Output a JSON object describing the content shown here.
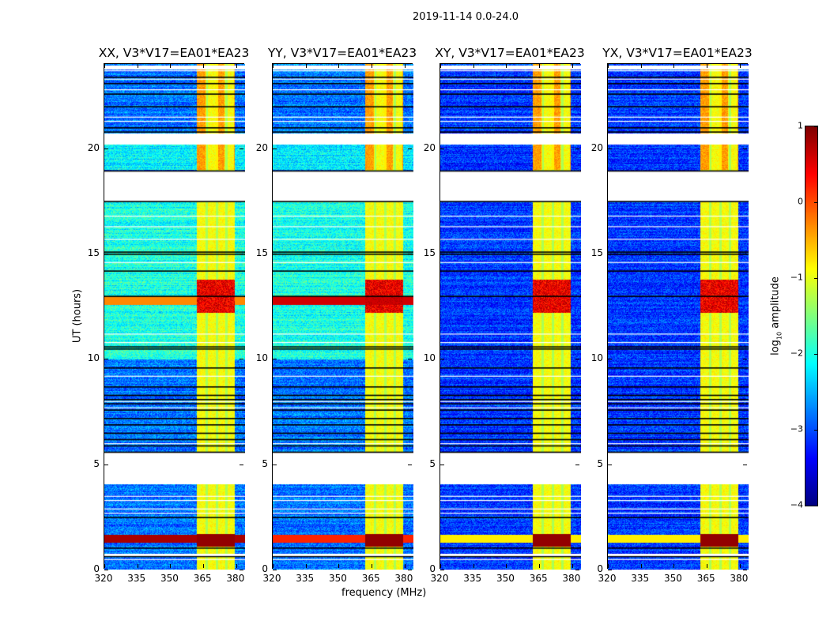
{
  "suptitle": "2019-11-14 0.0-24.0",
  "chart_data": {
    "type": "heatmap",
    "panels": [
      {
        "title": "XX, V3*V17=EA01*EA23",
        "pol": "XX"
      },
      {
        "title": "YY, V3*V17=EA01*EA23",
        "pol": "YY"
      },
      {
        "title": "XY, V3*V17=EA01*EA23",
        "pol": "XY"
      },
      {
        "title": "YX, V3*V17=EA01*EA23",
        "pol": "YX"
      }
    ],
    "xlabel": "frequency (MHz)",
    "ylabel": "UT (hours)",
    "xlim": [
      320,
      384
    ],
    "ylim": [
      0,
      24
    ],
    "xticks": [
      "320",
      "335",
      "350",
      "365",
      "380"
    ],
    "xtick_values": [
      320,
      335,
      350,
      365,
      380
    ],
    "yticks": [
      "0",
      "5",
      "10",
      "15",
      "20"
    ],
    "ytick_values": [
      0,
      5,
      10,
      15,
      20
    ],
    "colormap": "jet",
    "colorbar": {
      "label_main": "log",
      "label_sub": "10",
      "label_rest": " amplitude",
      "clim": [
        -4,
        1
      ],
      "ticks": [
        "1",
        "0",
        "−1",
        "−2",
        "−3",
        "−4"
      ],
      "tick_values": [
        1,
        0,
        -1,
        -2,
        -3,
        -4
      ]
    },
    "flagged_gaps_hours": [
      [
        17.5,
        18.95
      ],
      [
        20.2,
        20.7
      ],
      [
        4.05,
        5.55
      ],
      [
        0.62,
        0.75
      ]
    ],
    "bright_band_mhz": [
      362,
      379
    ],
    "bright_time_ranges_hours": [
      [
        12.2,
        13.8
      ],
      [
        1.1,
        1.7
      ]
    ]
  }
}
